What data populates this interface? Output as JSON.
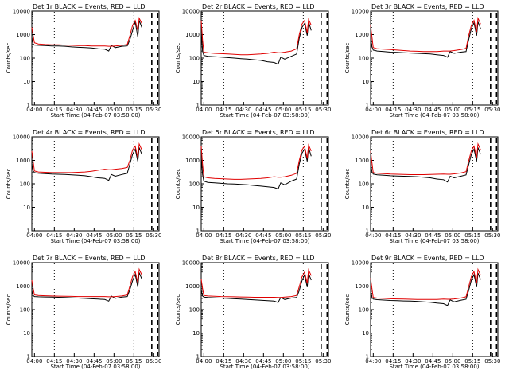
{
  "panel_time_axis": {
    "xlabel": "Start Time (04-Feb-07 03:58:00)",
    "ylabel": "Counts/sec",
    "x_ticks": [
      "04:00",
      "04:15",
      "04:30",
      "04:45",
      "05:00",
      "05:15",
      "05:30"
    ],
    "y_ticks": [
      "1",
      "10",
      "100",
      "1000",
      "10000"
    ]
  },
  "colors": {
    "events": "#000000",
    "lld": "#e00000"
  },
  "chart_data": [
    {
      "type": "line",
      "title": "Det 1r BLACK = Events, RED = LLD",
      "xlabel": "Start Time (04-Feb-07 03:58:00)",
      "ylabel": "Counts/sec",
      "x_unit": "minutes",
      "x": [
        0,
        1,
        2,
        5,
        10,
        15,
        20,
        25,
        30,
        35,
        40,
        45,
        50,
        55,
        58,
        60,
        63,
        68,
        72,
        74,
        76,
        78,
        80,
        81,
        83
      ],
      "xlim": [
        0,
        96
      ],
      "ylim": [
        1,
        10000
      ],
      "yscale": "log",
      "x_tick_values": [
        2,
        17,
        32,
        47,
        62,
        77,
        92
      ],
      "vlines_dotted": [
        17,
        77
      ],
      "vlines_dashed": [
        90.5,
        95
      ],
      "series": [
        {
          "name": "BLACK = Events",
          "color": "#000000",
          "values": [
            700,
            400,
            360,
            350,
            340,
            330,
            330,
            320,
            300,
            290,
            280,
            270,
            250,
            240,
            200,
            350,
            280,
            320,
            330,
            600,
            1500,
            3500,
            800,
            4000,
            2000
          ]
        },
        {
          "name": "RED = LLD",
          "color": "#e00000",
          "values": [
            2000,
            900,
            450,
            400,
            380,
            370,
            370,
            360,
            350,
            340,
            340,
            330,
            330,
            330,
            320,
            320,
            330,
            350,
            380,
            900,
            2500,
            4000,
            1500,
            5000,
            3000
          ]
        }
      ]
    },
    {
      "type": "line",
      "title": "Det 2r BLACK = Events, RED = LLD",
      "xlabel": "Start Time (04-Feb-07 03:58:00)",
      "ylabel": "Counts/sec",
      "x_unit": "minutes",
      "x": [
        0,
        1,
        2,
        5,
        10,
        15,
        20,
        25,
        30,
        35,
        40,
        45,
        50,
        55,
        58,
        60,
        63,
        68,
        72,
        74,
        76,
        78,
        80,
        81,
        83
      ],
      "xlim": [
        0,
        96
      ],
      "ylim": [
        1,
        10000
      ],
      "yscale": "log",
      "x_tick_values": [
        2,
        17,
        32,
        47,
        62,
        77,
        92
      ],
      "vlines_dotted": [
        17,
        77
      ],
      "vlines_dashed": [
        90.5,
        95
      ],
      "series": [
        {
          "name": "BLACK = Events",
          "color": "#000000",
          "values": [
            1500,
            200,
            130,
            120,
            115,
            110,
            105,
            100,
            95,
            90,
            85,
            80,
            70,
            65,
            55,
            110,
            90,
            120,
            150,
            700,
            2000,
            3000,
            900,
            3500,
            1500
          ]
        },
        {
          "name": "RED = LLD",
          "color": "#e00000",
          "values": [
            4000,
            600,
            180,
            170,
            160,
            155,
            150,
            145,
            140,
            140,
            145,
            150,
            160,
            180,
            170,
            170,
            180,
            200,
            250,
            1000,
            2800,
            4000,
            1200,
            4500,
            2500
          ]
        }
      ]
    },
    {
      "type": "line",
      "title": "Det 3r BLACK = Events, RED = LLD",
      "xlabel": "Start Time (04-Feb-07 03:58:00)",
      "ylabel": "Counts/sec",
      "x_unit": "minutes",
      "x": [
        0,
        1,
        2,
        5,
        10,
        15,
        20,
        25,
        30,
        35,
        40,
        45,
        50,
        55,
        58,
        60,
        63,
        68,
        72,
        74,
        76,
        78,
        80,
        81,
        83
      ],
      "xlim": [
        0,
        96
      ],
      "ylim": [
        1,
        10000
      ],
      "yscale": "log",
      "x_tick_values": [
        2,
        17,
        32,
        47,
        62,
        77,
        92
      ],
      "vlines_dotted": [
        17,
        77
      ],
      "vlines_dashed": [
        90.5,
        95
      ],
      "series": [
        {
          "name": "BLACK = Events",
          "color": "#000000",
          "values": [
            800,
            300,
            220,
            200,
            190,
            180,
            175,
            170,
            165,
            160,
            155,
            150,
            140,
            130,
            110,
            190,
            160,
            180,
            190,
            600,
            1800,
            3200,
            900,
            3500,
            1800
          ]
        },
        {
          "name": "RED = LLD",
          "color": "#e00000",
          "values": [
            2500,
            800,
            280,
            250,
            240,
            230,
            220,
            210,
            200,
            195,
            190,
            190,
            190,
            200,
            200,
            200,
            210,
            230,
            260,
            900,
            2500,
            4000,
            1300,
            5000,
            2800
          ]
        }
      ]
    },
    {
      "type": "line",
      "title": "Det 4r BLACK = Events, RED = LLD",
      "xlabel": "Start Time (04-Feb-07 03:58:00)",
      "ylabel": "Counts/sec",
      "x_unit": "minutes",
      "x": [
        0,
        1,
        2,
        5,
        10,
        15,
        20,
        25,
        30,
        35,
        40,
        45,
        50,
        55,
        58,
        60,
        63,
        68,
        72,
        74,
        76,
        78,
        80,
        81,
        83
      ],
      "xlim": [
        0,
        96
      ],
      "ylim": [
        1,
        10000
      ],
      "yscale": "log",
      "x_tick_values": [
        2,
        17,
        32,
        47,
        62,
        77,
        92
      ],
      "vlines_dotted": [
        17,
        77
      ],
      "vlines_dashed": [
        90.5,
        95
      ],
      "series": [
        {
          "name": "BLACK = Events",
          "color": "#000000",
          "values": [
            700,
            350,
            300,
            280,
            270,
            260,
            255,
            250,
            240,
            230,
            220,
            200,
            180,
            170,
            140,
            250,
            210,
            250,
            280,
            700,
            1800,
            3000,
            900,
            3500,
            1800
          ]
        },
        {
          "name": "RED = LLD",
          "color": "#e00000",
          "values": [
            2500,
            900,
            350,
            320,
            310,
            300,
            300,
            300,
            300,
            310,
            320,
            340,
            380,
            420,
            400,
            400,
            420,
            450,
            500,
            1000,
            2800,
            4000,
            1300,
            5000,
            2800
          ]
        }
      ]
    },
    {
      "type": "line",
      "title": "Det 5r BLACK = Events, RED = LLD",
      "xlabel": "Start Time (04-Feb-07 03:58:00)",
      "ylabel": "Counts/sec",
      "x_unit": "minutes",
      "x": [
        0,
        1,
        2,
        5,
        10,
        15,
        20,
        25,
        30,
        35,
        40,
        45,
        50,
        55,
        58,
        60,
        63,
        68,
        72,
        74,
        76,
        78,
        80,
        81,
        83
      ],
      "xlim": [
        0,
        96
      ],
      "ylim": [
        1,
        10000
      ],
      "yscale": "log",
      "x_tick_values": [
        2,
        17,
        32,
        47,
        62,
        77,
        92
      ],
      "vlines_dotted": [
        17,
        77
      ],
      "vlines_dashed": [
        90.5,
        95
      ],
      "series": [
        {
          "name": "BLACK = Events",
          "color": "#000000",
          "values": [
            1500,
            250,
            130,
            115,
            110,
            105,
            100,
            98,
            95,
            90,
            85,
            80,
            75,
            70,
            60,
            110,
            90,
            130,
            160,
            700,
            2000,
            3000,
            900,
            3500,
            1500
          ]
        },
        {
          "name": "RED = LLD",
          "color": "#e00000",
          "values": [
            4000,
            700,
            200,
            180,
            170,
            165,
            160,
            155,
            155,
            160,
            165,
            170,
            180,
            200,
            190,
            190,
            200,
            230,
            280,
            1000,
            2800,
            4000,
            1200,
            4500,
            2500
          ]
        }
      ]
    },
    {
      "type": "line",
      "title": "Det 6r BLACK = Events, RED = LLD",
      "xlabel": "Start Time (04-Feb-07 03:58:00)",
      "ylabel": "Counts/sec",
      "x_unit": "minutes",
      "x": [
        0,
        1,
        2,
        5,
        10,
        15,
        20,
        25,
        30,
        35,
        40,
        45,
        50,
        55,
        58,
        60,
        63,
        68,
        72,
        74,
        76,
        78,
        80,
        81,
        83
      ],
      "xlim": [
        0,
        96
      ],
      "ylim": [
        1,
        10000
      ],
      "yscale": "log",
      "x_tick_values": [
        2,
        17,
        32,
        47,
        62,
        77,
        92
      ],
      "vlines_dotted": [
        17,
        77
      ],
      "vlines_dashed": [
        90.5,
        95
      ],
      "series": [
        {
          "name": "BLACK = Events",
          "color": "#000000",
          "values": [
            800,
            320,
            260,
            240,
            230,
            220,
            215,
            210,
            205,
            200,
            190,
            180,
            160,
            150,
            120,
            210,
            180,
            210,
            240,
            650,
            1800,
            3000,
            900,
            3500,
            1800
          ]
        },
        {
          "name": "RED = LLD",
          "color": "#e00000",
          "values": [
            2500,
            800,
            300,
            280,
            270,
            260,
            255,
            250,
            245,
            245,
            245,
            250,
            255,
            260,
            255,
            255,
            265,
            290,
            330,
            950,
            2600,
            4000,
            1300,
            5000,
            2800
          ]
        }
      ]
    },
    {
      "type": "line",
      "title": "Det 7r BLACK = Events, RED = LLD",
      "xlabel": "Start Time (04-Feb-07 03:58:00)",
      "ylabel": "Counts/sec",
      "x_unit": "minutes",
      "x": [
        0,
        1,
        2,
        5,
        10,
        15,
        20,
        25,
        30,
        35,
        40,
        45,
        50,
        55,
        58,
        60,
        63,
        68,
        72,
        74,
        76,
        78,
        80,
        81,
        83
      ],
      "xlim": [
        0,
        96
      ],
      "ylim": [
        1,
        10000
      ],
      "yscale": "log",
      "x_tick_values": [
        2,
        17,
        32,
        47,
        62,
        77,
        92
      ],
      "vlines_dotted": [
        17,
        77
      ],
      "vlines_dashed": [
        90.5,
        95
      ],
      "series": [
        {
          "name": "BLACK = Events",
          "color": "#000000",
          "values": [
            600,
            400,
            360,
            350,
            345,
            340,
            335,
            330,
            320,
            310,
            300,
            290,
            280,
            270,
            230,
            380,
            300,
            340,
            360,
            700,
            1700,
            3200,
            900,
            3800,
            2000
          ]
        },
        {
          "name": "RED = LLD",
          "color": "#e00000",
          "values": [
            1800,
            800,
            420,
            400,
            390,
            380,
            375,
            370,
            365,
            360,
            360,
            360,
            360,
            360,
            350,
            350,
            360,
            380,
            420,
            1000,
            2600,
            4200,
            1400,
            5200,
            3000
          ]
        }
      ]
    },
    {
      "type": "line",
      "title": "Det 8r BLACK = Events, RED = LLD",
      "xlabel": "Start Time (04-Feb-07 03:58:00)",
      "ylabel": "Counts/sec",
      "x_unit": "minutes",
      "x": [
        0,
        1,
        2,
        5,
        10,
        15,
        20,
        25,
        30,
        35,
        40,
        45,
        50,
        55,
        58,
        60,
        63,
        68,
        72,
        74,
        76,
        78,
        80,
        81,
        83
      ],
      "xlim": [
        0,
        96
      ],
      "ylim": [
        1,
        10000
      ],
      "yscale": "log",
      "x_tick_values": [
        2,
        17,
        32,
        47,
        62,
        77,
        92
      ],
      "vlines_dotted": [
        17,
        77
      ],
      "vlines_dashed": [
        90.5,
        95
      ],
      "series": [
        {
          "name": "BLACK = Events",
          "color": "#000000",
          "values": [
            700,
            380,
            340,
            330,
            320,
            310,
            300,
            290,
            280,
            270,
            260,
            250,
            240,
            230,
            200,
            330,
            270,
            310,
            330,
            650,
            1700,
            3000,
            900,
            3500,
            1800
          ]
        },
        {
          "name": "RED = LLD",
          "color": "#e00000",
          "values": [
            2000,
            800,
            400,
            380,
            370,
            360,
            355,
            350,
            345,
            340,
            335,
            335,
            335,
            335,
            330,
            330,
            340,
            360,
            400,
            950,
            2500,
            4000,
            1300,
            5000,
            2800
          ]
        }
      ]
    },
    {
      "type": "line",
      "title": "Det 9r BLACK = Events, RED = LLD",
      "xlabel": "Start Time (04-Feb-07 03:58:00)",
      "ylabel": "Counts/sec",
      "x_unit": "minutes",
      "x": [
        0,
        1,
        2,
        5,
        10,
        15,
        20,
        25,
        30,
        35,
        40,
        45,
        50,
        55,
        58,
        60,
        63,
        68,
        72,
        74,
        76,
        78,
        80,
        81,
        83
      ],
      "xlim": [
        0,
        96
      ],
      "ylim": [
        1,
        10000
      ],
      "yscale": "log",
      "x_tick_values": [
        2,
        17,
        32,
        47,
        62,
        77,
        92
      ],
      "vlines_dotted": [
        17,
        77
      ],
      "vlines_dashed": [
        90.5,
        95
      ],
      "series": [
        {
          "name": "BLACK = Events",
          "color": "#000000",
          "values": [
            700,
            330,
            280,
            265,
            255,
            245,
            240,
            235,
            230,
            225,
            215,
            205,
            190,
            180,
            150,
            260,
            215,
            250,
            275,
            650,
            1800,
            3100,
            900,
            3600,
            1900
          ]
        },
        {
          "name": "RED = LLD",
          "color": "#e00000",
          "values": [
            2200,
            800,
            330,
            310,
            300,
            290,
            285,
            280,
            275,
            270,
            270,
            270,
            270,
            280,
            275,
            275,
            285,
            310,
            350,
            950,
            2600,
            4200,
            1300,
            5100,
            2900
          ]
        }
      ]
    }
  ]
}
